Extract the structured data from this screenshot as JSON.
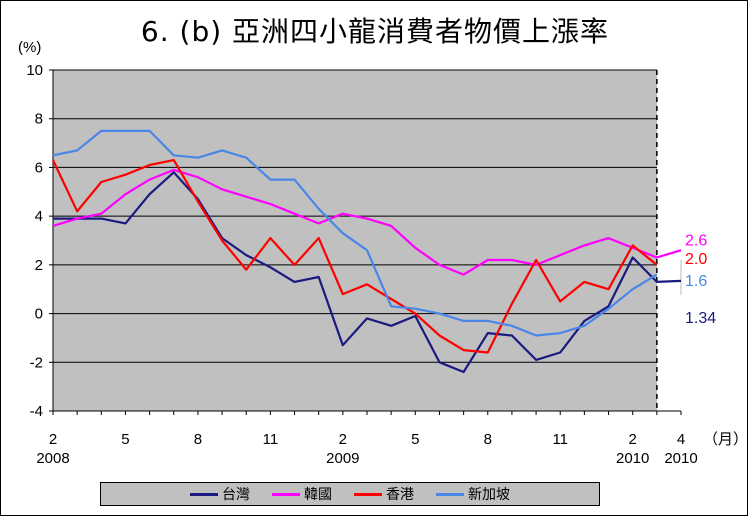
{
  "title": "6. (b)  亞洲四小龍消費者物價上漲率",
  "chart_data": {
    "type": "line",
    "ylabel": "(%)",
    "xunit": "（月）",
    "ylim": [
      -4,
      10
    ],
    "yticks": [
      -4,
      -2,
      0,
      2,
      4,
      6,
      8,
      10
    ],
    "grid": true,
    "legend_position": "bottom",
    "x_months": [
      "2008-02",
      "2008-03",
      "2008-04",
      "2008-05",
      "2008-06",
      "2008-07",
      "2008-08",
      "2008-09",
      "2008-10",
      "2008-11",
      "2008-12",
      "2009-01",
      "2009-02",
      "2009-03",
      "2009-04",
      "2009-05",
      "2009-06",
      "2009-07",
      "2009-08",
      "2009-09",
      "2009-10",
      "2009-11",
      "2009-12",
      "2010-01",
      "2010-02",
      "2010-03",
      "2010-04"
    ],
    "xtick_labels": [
      {
        "month": "2008-02",
        "label": "2",
        "year": "2008"
      },
      {
        "month": "2008-05",
        "label": "5",
        "year": ""
      },
      {
        "month": "2008-08",
        "label": "8",
        "year": ""
      },
      {
        "month": "2008-11",
        "label": "11",
        "year": ""
      },
      {
        "month": "2009-02",
        "label": "2",
        "year": "2009"
      },
      {
        "month": "2009-05",
        "label": "5",
        "year": ""
      },
      {
        "month": "2009-08",
        "label": "8",
        "year": ""
      },
      {
        "month": "2009-11",
        "label": "11",
        "year": ""
      },
      {
        "month": "2010-02",
        "label": "2",
        "year": "2010"
      },
      {
        "month": "2010-04",
        "label": "4",
        "year": "2010"
      }
    ],
    "forecast_divider_month": "2010-03",
    "series": [
      {
        "name": "台灣",
        "color": "#1a1a80",
        "values": [
          3.9,
          3.9,
          3.9,
          3.7,
          4.9,
          5.8,
          4.7,
          3.1,
          2.4,
          1.9,
          1.3,
          1.5,
          -1.3,
          -0.2,
          -0.5,
          -0.1,
          -2.0,
          -2.4,
          -0.8,
          -0.9,
          -1.9,
          -1.6,
          -0.3,
          0.3,
          2.3,
          1.3,
          1.34
        ],
        "end_label": "1.34"
      },
      {
        "name": "韓國",
        "color": "#ff00ff",
        "values": [
          3.6,
          3.9,
          4.1,
          4.9,
          5.5,
          5.9,
          5.6,
          5.1,
          4.8,
          4.5,
          4.1,
          3.7,
          4.1,
          3.9,
          3.6,
          2.7,
          2.0,
          1.6,
          2.2,
          2.2,
          2.0,
          2.4,
          2.8,
          3.1,
          2.7,
          2.3,
          2.6
        ],
        "end_label": "2.6"
      },
      {
        "name": "香港",
        "color": "#ff0000",
        "values": [
          6.3,
          4.2,
          5.4,
          5.7,
          6.1,
          6.3,
          4.6,
          3.0,
          1.8,
          3.1,
          2.0,
          3.1,
          0.8,
          1.2,
          0.6,
          0.0,
          -0.9,
          -1.5,
          -1.6,
          0.4,
          2.2,
          0.5,
          1.3,
          1.0,
          2.8,
          2.0
        ],
        "end_label": "2.0"
      },
      {
        "name": "新加坡",
        "color": "#4a86e8",
        "values": [
          6.5,
          6.7,
          7.5,
          7.5,
          7.5,
          6.5,
          6.4,
          6.7,
          6.4,
          5.5,
          5.5,
          4.3,
          3.3,
          2.6,
          0.3,
          0.2,
          0.0,
          -0.3,
          -0.3,
          -0.5,
          -0.9,
          -0.8,
          -0.5,
          0.2,
          1.0,
          1.6
        ],
        "end_label": "1.6"
      }
    ]
  }
}
